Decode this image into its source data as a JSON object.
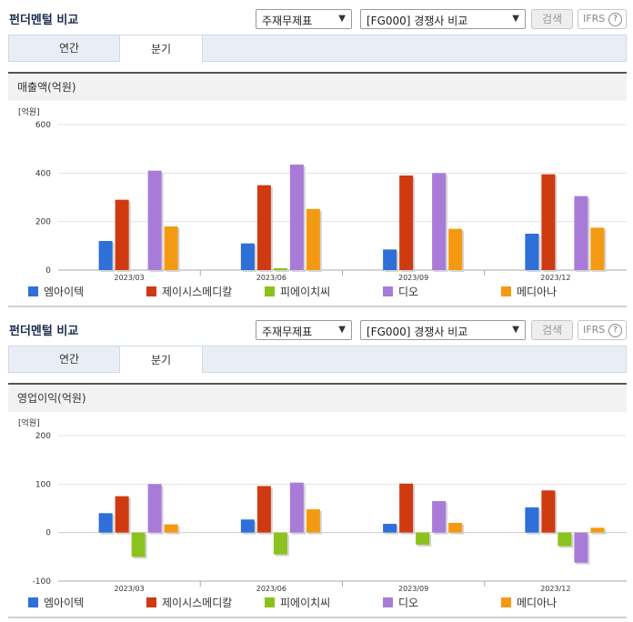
{
  "sections": [
    {
      "title": "펀더멘털 비교",
      "select1": "주재무제표",
      "select2": "[FG000] 경쟁사 비교",
      "search_label": "검색",
      "ifrs_label": "IFRS",
      "help_label": "?",
      "tabs": [
        {
          "label": "연간"
        },
        {
          "label": "분기"
        }
      ],
      "active_tab": 1,
      "subtitle": "매출액(억원)"
    },
    {
      "title": "펀더멘털 비교",
      "select1": "주재무제표",
      "select2": "[FG000] 경쟁사 비교",
      "search_label": "검색",
      "ifrs_label": "IFRS",
      "help_label": "?",
      "tabs": [
        {
          "label": "연간"
        },
        {
          "label": "분기"
        }
      ],
      "active_tab": 1,
      "subtitle": "영업이익(억원)"
    }
  ],
  "chart_data": [
    {
      "type": "bar",
      "unit_label": "[억원]",
      "categories": [
        "2023/03",
        "2023/06",
        "2023/09",
        "2023/12"
      ],
      "ylim": [
        0,
        600
      ],
      "yticks": [
        0,
        200,
        400,
        600
      ],
      "legend_position": "bottom",
      "series": [
        {
          "name": "엠아이텍",
          "color": "#2e6fd8",
          "values": [
            120,
            110,
            85,
            150
          ]
        },
        {
          "name": "제이시스메디칼",
          "color": "#d03a10",
          "values": [
            290,
            350,
            390,
            395
          ]
        },
        {
          "name": "피에이치씨",
          "color": "#8cc21e",
          "values": [
            0,
            8,
            0,
            0
          ]
        },
        {
          "name": "디오",
          "color": "#a97bd8",
          "values": [
            410,
            435,
            400,
            305
          ]
        },
        {
          "name": "메디아나",
          "color": "#f49a12",
          "values": [
            180,
            252,
            170,
            175
          ]
        }
      ]
    },
    {
      "type": "bar",
      "unit_label": "[억원]",
      "categories": [
        "2023/03",
        "2023/06",
        "2023/09",
        "2023/12"
      ],
      "ylim": [
        -100,
        200
      ],
      "yticks": [
        -100,
        0,
        100,
        200
      ],
      "legend_position": "bottom",
      "series": [
        {
          "name": "엠아이텍",
          "color": "#2e6fd8",
          "values": [
            40,
            27,
            18,
            52
          ]
        },
        {
          "name": "제이시스메디칼",
          "color": "#d03a10",
          "values": [
            75,
            96,
            101,
            87
          ]
        },
        {
          "name": "피에이치씨",
          "color": "#8cc21e",
          "values": [
            -50,
            -45,
            -25,
            -28
          ]
        },
        {
          "name": "디오",
          "color": "#a97bd8",
          "values": [
            100,
            103,
            65,
            -62
          ]
        },
        {
          "name": "메디아나",
          "color": "#f49a12",
          "values": [
            17,
            48,
            20,
            10
          ]
        }
      ]
    }
  ]
}
